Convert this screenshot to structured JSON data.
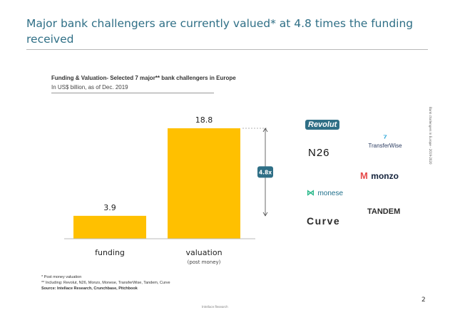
{
  "slide": {
    "title": "Major bank challengers are currently valued* at 4.8 times the funding received",
    "side_label": "Bank challengers in Europe - 2019-2020",
    "page_number": "2",
    "footer": "Intellace Research"
  },
  "chart_data": {
    "type": "bar",
    "title": "Funding & Valuation- Selected 7 major** bank challengers in Europe",
    "subtitle": "In US$ billion, as of Dec. 2019",
    "categories": [
      "funding",
      "valuation"
    ],
    "category_sublabels": [
      "",
      "(post money)"
    ],
    "values": [
      3.9,
      18.8
    ],
    "value_labels": [
      "3.9",
      "18.8"
    ],
    "bar_color": "#FFC000",
    "annotation": "4.8x",
    "annotation_color": "#2f6f86"
  },
  "logos": [
    {
      "name": "Revolut",
      "color": "#2f6f86"
    },
    {
      "name": "TransferWise",
      "color": "#2d3e63"
    },
    {
      "name": "N26",
      "color": "#111111"
    },
    {
      "name": "monzo",
      "color": "#14233c"
    },
    {
      "name": "monese",
      "color": "#1f6f8b"
    },
    {
      "name": "TANDEM",
      "color": "#2c2c2c"
    },
    {
      "name": "Curve",
      "color": "#2b2b2b"
    }
  ],
  "notes": {
    "line1": "* Post money valuation",
    "line2": "** Including: Revolut, N26, Monzo, Monese, TransferWise, Tandem, Curve",
    "line3": "Source: Intellace Research, Crunchbase, Pitchbook"
  }
}
